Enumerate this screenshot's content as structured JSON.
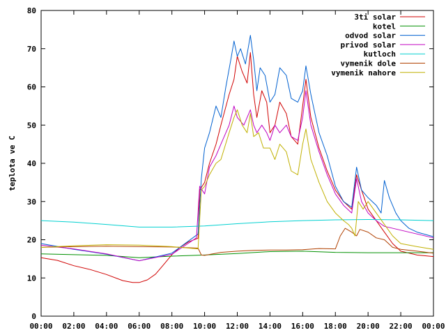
{
  "chart_data": {
    "type": "line",
    "title": "",
    "xlabel": "",
    "ylabel": "teplota ve C",
    "xlim": [
      0,
      24
    ],
    "ylim": [
      0,
      80
    ],
    "grid": false,
    "legend_position": "top-right",
    "x_ticks": [
      {
        "value": 0,
        "label": "00:00"
      },
      {
        "value": 2,
        "label": "02:00"
      },
      {
        "value": 4,
        "label": "04:00"
      },
      {
        "value": 6,
        "label": "06:00"
      },
      {
        "value": 8,
        "label": "08:00"
      },
      {
        "value": 10,
        "label": "10:00"
      },
      {
        "value": 12,
        "label": "12:00"
      },
      {
        "value": 14,
        "label": "14:00"
      },
      {
        "value": 16,
        "label": "16:00"
      },
      {
        "value": 18,
        "label": "18:00"
      },
      {
        "value": 20,
        "label": "20:00"
      },
      {
        "value": 22,
        "label": "22:00"
      },
      {
        "value": 24,
        "label": "00:00"
      }
    ],
    "y_ticks": [
      {
        "value": 0,
        "label": "0"
      },
      {
        "value": 10,
        "label": "10"
      },
      {
        "value": 20,
        "label": "20"
      },
      {
        "value": 30,
        "label": "30"
      },
      {
        "value": 40,
        "label": "40"
      },
      {
        "value": 50,
        "label": "50"
      },
      {
        "value": 60,
        "label": "60"
      },
      {
        "value": 70,
        "label": "70"
      },
      {
        "value": 80,
        "label": "80"
      }
    ],
    "series": [
      {
        "name": "3ti solar",
        "color": "#d00000",
        "points": [
          [
            0,
            15.3
          ],
          [
            1,
            14.6
          ],
          [
            2,
            13.2
          ],
          [
            3,
            12.2
          ],
          [
            4,
            10.9
          ],
          [
            5,
            9.3
          ],
          [
            5.6,
            8.8
          ],
          [
            6,
            8.8
          ],
          [
            6.5,
            9.5
          ],
          [
            7,
            11
          ],
          [
            7.5,
            13.5
          ],
          [
            8,
            16.1
          ],
          [
            8.5,
            18
          ],
          [
            9,
            19.4
          ],
          [
            9.6,
            20.4
          ],
          [
            9.7,
            33
          ],
          [
            10,
            35
          ],
          [
            10.3,
            40
          ],
          [
            10.7,
            45
          ],
          [
            11,
            50
          ],
          [
            11.5,
            58
          ],
          [
            11.8,
            62
          ],
          [
            12,
            68
          ],
          [
            12.3,
            64
          ],
          [
            12.6,
            61
          ],
          [
            12.8,
            69
          ],
          [
            13,
            58
          ],
          [
            13.2,
            52
          ],
          [
            13.5,
            59
          ],
          [
            13.8,
            56
          ],
          [
            14,
            48
          ],
          [
            14.3,
            50
          ],
          [
            14.6,
            56
          ],
          [
            15,
            53
          ],
          [
            15.3,
            47
          ],
          [
            15.7,
            45
          ],
          [
            16,
            55
          ],
          [
            16.2,
            62
          ],
          [
            16.5,
            52
          ],
          [
            17,
            44
          ],
          [
            17.5,
            38
          ],
          [
            18,
            33
          ],
          [
            18.5,
            30
          ],
          [
            19,
            28
          ],
          [
            19.3,
            37
          ],
          [
            19.6,
            33
          ],
          [
            20,
            28
          ],
          [
            20.5,
            25
          ],
          [
            21,
            22
          ],
          [
            21.5,
            19
          ],
          [
            22,
            17
          ],
          [
            23,
            16
          ],
          [
            24,
            15.6
          ]
        ]
      },
      {
        "name": "kotel",
        "color": "#009000",
        "points": [
          [
            0,
            16.3
          ],
          [
            2,
            16.1
          ],
          [
            4,
            15.9
          ],
          [
            6,
            15.3
          ],
          [
            8,
            15.7
          ],
          [
            10,
            16
          ],
          [
            12,
            16.4
          ],
          [
            14,
            16.9
          ],
          [
            16,
            17
          ],
          [
            18,
            16.7
          ],
          [
            20,
            16.6
          ],
          [
            22,
            16.6
          ],
          [
            24,
            16.6
          ]
        ]
      },
      {
        "name": "odvod solar",
        "color": "#0060d0",
        "points": [
          [
            0,
            19
          ],
          [
            2,
            17.5
          ],
          [
            4,
            16.2
          ],
          [
            6,
            14.5
          ],
          [
            8,
            16.5
          ],
          [
            9.6,
            21.5
          ],
          [
            9.8,
            36
          ],
          [
            10,
            44
          ],
          [
            10.3,
            48
          ],
          [
            10.7,
            55
          ],
          [
            11,
            52
          ],
          [
            11.3,
            60
          ],
          [
            11.6,
            67
          ],
          [
            11.8,
            72
          ],
          [
            12,
            68
          ],
          [
            12.2,
            70
          ],
          [
            12.5,
            66
          ],
          [
            12.8,
            73.5
          ],
          [
            13,
            67
          ],
          [
            13.2,
            59
          ],
          [
            13.4,
            65
          ],
          [
            13.7,
            63
          ],
          [
            14,
            56
          ],
          [
            14.3,
            58
          ],
          [
            14.6,
            65
          ],
          [
            15,
            63
          ],
          [
            15.3,
            57
          ],
          [
            15.7,
            56
          ],
          [
            16,
            59
          ],
          [
            16.2,
            65.5
          ],
          [
            16.5,
            58
          ],
          [
            17,
            48
          ],
          [
            17.5,
            42
          ],
          [
            18,
            34
          ],
          [
            18.5,
            30
          ],
          [
            19,
            28.5
          ],
          [
            19.3,
            39
          ],
          [
            19.6,
            33
          ],
          [
            20,
            31
          ],
          [
            20.5,
            29
          ],
          [
            20.8,
            27
          ],
          [
            21,
            35.5
          ],
          [
            21.3,
            31
          ],
          [
            21.7,
            27
          ],
          [
            22,
            25
          ],
          [
            22.5,
            23
          ],
          [
            23,
            22
          ],
          [
            24,
            20.8
          ]
        ]
      },
      {
        "name": "privod solar",
        "color": "#c000c0",
        "points": [
          [
            0,
            18.6
          ],
          [
            2,
            17.6
          ],
          [
            4,
            16.3
          ],
          [
            6,
            14.5
          ],
          [
            8,
            16.2
          ],
          [
            9.5,
            20.5
          ],
          [
            9.7,
            34
          ],
          [
            10,
            32
          ],
          [
            10.3,
            39
          ],
          [
            10.7,
            42
          ],
          [
            11,
            45
          ],
          [
            11.5,
            50
          ],
          [
            11.8,
            55
          ],
          [
            12,
            52
          ],
          [
            12.4,
            50
          ],
          [
            12.8,
            54
          ],
          [
            13,
            50
          ],
          [
            13.2,
            48
          ],
          [
            13.5,
            50
          ],
          [
            13.8,
            48
          ],
          [
            14,
            46
          ],
          [
            14.3,
            50
          ],
          [
            14.6,
            48
          ],
          [
            15,
            50
          ],
          [
            15.3,
            47
          ],
          [
            15.7,
            46
          ],
          [
            16,
            52
          ],
          [
            16.2,
            59
          ],
          [
            16.5,
            50
          ],
          [
            17,
            43
          ],
          [
            17.5,
            37
          ],
          [
            18,
            32
          ],
          [
            18.5,
            29
          ],
          [
            19,
            27
          ],
          [
            19.3,
            36
          ],
          [
            19.6,
            30
          ],
          [
            20,
            27
          ],
          [
            20.5,
            25
          ],
          [
            21,
            23.5
          ],
          [
            22,
            22.5
          ],
          [
            23,
            21.5
          ],
          [
            24,
            20.5
          ]
        ]
      },
      {
        "name": "kutloch",
        "color": "#00d0d0",
        "points": [
          [
            0,
            25
          ],
          [
            2,
            24.6
          ],
          [
            4,
            24
          ],
          [
            6,
            23.3
          ],
          [
            8,
            23.3
          ],
          [
            10,
            23.6
          ],
          [
            12,
            24.2
          ],
          [
            14,
            24.7
          ],
          [
            16,
            25
          ],
          [
            18,
            25.2
          ],
          [
            20,
            25.3
          ],
          [
            22,
            25.2
          ],
          [
            24,
            25
          ]
        ]
      },
      {
        "name": "vymenik dole",
        "color": "#b04000",
        "points": [
          [
            0,
            18
          ],
          [
            2,
            18.2
          ],
          [
            4,
            18.3
          ],
          [
            6,
            18.2
          ],
          [
            8,
            18.1
          ],
          [
            9.6,
            17.8
          ],
          [
            9.8,
            16
          ],
          [
            10,
            15.9
          ],
          [
            11,
            16.7
          ],
          [
            12,
            17
          ],
          [
            13,
            17.2
          ],
          [
            14,
            17.3
          ],
          [
            15,
            17.3
          ],
          [
            16,
            17.4
          ],
          [
            17,
            17.7
          ],
          [
            18,
            17.6
          ],
          [
            18.3,
            21
          ],
          [
            18.6,
            23
          ],
          [
            19,
            22
          ],
          [
            19.3,
            21
          ],
          [
            19.5,
            22.7
          ],
          [
            20,
            22
          ],
          [
            20.5,
            20.5
          ],
          [
            21,
            20
          ],
          [
            21.5,
            18
          ],
          [
            22,
            17.5
          ],
          [
            23,
            17
          ],
          [
            24,
            16.5
          ]
        ]
      },
      {
        "name": "vymenik nahore",
        "color": "#c0b000",
        "points": [
          [
            0,
            18
          ],
          [
            2,
            18.4
          ],
          [
            4,
            18.7
          ],
          [
            6,
            18.6
          ],
          [
            8,
            18.2
          ],
          [
            9.6,
            17.6
          ],
          [
            9.8,
            33
          ],
          [
            10,
            34
          ],
          [
            10.3,
            37
          ],
          [
            10.7,
            40
          ],
          [
            11,
            41
          ],
          [
            11.5,
            48
          ],
          [
            11.8,
            52
          ],
          [
            12,
            54
          ],
          [
            12.3,
            50
          ],
          [
            12.6,
            48
          ],
          [
            12.8,
            53
          ],
          [
            13,
            47
          ],
          [
            13.3,
            48
          ],
          [
            13.6,
            44
          ],
          [
            14,
            44
          ],
          [
            14.3,
            41
          ],
          [
            14.6,
            45
          ],
          [
            15,
            43
          ],
          [
            15.3,
            38
          ],
          [
            15.7,
            37
          ],
          [
            16,
            45
          ],
          [
            16.2,
            49
          ],
          [
            16.5,
            41
          ],
          [
            17,
            35
          ],
          [
            17.5,
            30
          ],
          [
            18,
            27
          ],
          [
            18.5,
            25
          ],
          [
            18.8,
            24
          ],
          [
            19,
            23
          ],
          [
            19.2,
            21
          ],
          [
            19.4,
            30
          ],
          [
            19.7,
            28
          ],
          [
            20,
            30
          ],
          [
            20.5,
            27
          ],
          [
            21,
            24
          ],
          [
            21.5,
            21
          ],
          [
            22,
            19
          ],
          [
            23,
            18.2
          ],
          [
            24,
            17.5
          ]
        ]
      }
    ]
  }
}
